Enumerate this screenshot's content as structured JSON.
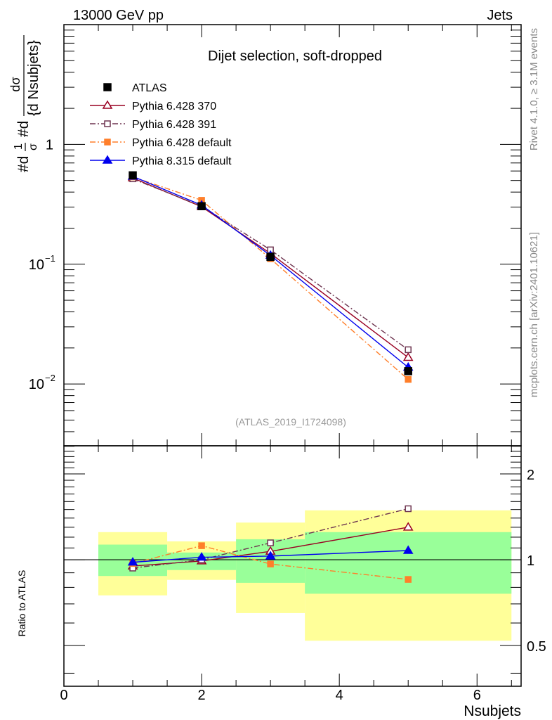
{
  "chart_data": {
    "type": "line",
    "header_left": "13000 GeV pp",
    "header_right": "Jets",
    "title": "Dijet selection, soft-dropped",
    "watermark": "(ATLAS_2019_I1724098)",
    "side_top": "Rivet 4.1.0, ≥ 3.1M events",
    "side_bottom": "mcplots.cern.ch [arXiv:2401.10621]",
    "ylabel": "#d¹⁄σ #d dσ / {d Nsubjets}",
    "ylabel_parts": {
      "a": "#d",
      "frac1_num": "1",
      "frac1_den": "σ",
      "b": "#d",
      "frac2_num": "dσ",
      "frac2_den": "{d Nsubjets}"
    },
    "xlabel": "Nsubjets",
    "ratio_ylabel": "Ratio to ATLAS",
    "xlim": [
      0,
      6.64
    ],
    "ylim": [
      0.00305,
      10
    ],
    "ratio_ylim": [
      0.36,
      2.51
    ],
    "yscale": "log",
    "x_ticks": [
      "0",
      "2",
      "4",
      "6"
    ],
    "y_ticks": [
      {
        "v": 1,
        "label": "1"
      },
      {
        "v": 0.1,
        "label": "10",
        "exp": "−1"
      },
      {
        "v": 0.01,
        "label": "10",
        "exp": "−2"
      }
    ],
    "ratio_ticks": [
      {
        "v": 0.5,
        "label": "0.5"
      },
      {
        "v": 1,
        "label": "1"
      },
      {
        "v": 2,
        "label": "2"
      }
    ],
    "x": [
      1,
      2,
      3,
      5
    ],
    "data": {
      "name": "ATLAS",
      "values": [
        0.552,
        0.305,
        0.115,
        0.0128
      ],
      "color": "#000000"
    },
    "series": [
      {
        "name": "Pythia 6.428 370",
        "ratio": [
          0.95,
          0.99,
          1.07,
          1.3
        ],
        "color": "#990022",
        "dash": "",
        "marker": "triangle-open"
      },
      {
        "name": "Pythia 6.428 391",
        "ratio": [
          0.935,
          1.0,
          1.146,
          1.51
        ],
        "color": "#6e3550",
        "dash": "8,3,2,3",
        "marker": "square-open"
      },
      {
        "name": "Pythia 6.428 default",
        "ratio": [
          0.97,
          1.12,
          0.966,
          0.853
        ],
        "color": "#ff7f2a",
        "dash": "8,3,2,3",
        "marker": "square-filled"
      },
      {
        "name": "Pythia 8.315 default",
        "ratio": [
          0.98,
          1.02,
          1.03,
          1.077
        ],
        "color": "#0000ee",
        "dash": "",
        "marker": "triangle-filled"
      }
    ],
    "bands": {
      "bins": [
        [
          0.5,
          1.5
        ],
        [
          1.5,
          2.5
        ],
        [
          2.5,
          3.5
        ],
        [
          3.5,
          6.5
        ]
      ],
      "inner": [
        [
          0.877,
          1.13
        ],
        [
          0.92,
          1.06
        ],
        [
          0.83,
          1.18
        ],
        [
          0.76,
          1.25
        ]
      ],
      "outer": [
        [
          0.75,
          1.25
        ],
        [
          0.85,
          1.16
        ],
        [
          0.65,
          1.35
        ],
        [
          0.52,
          1.49
        ]
      ],
      "inner_color": "#99ff99",
      "outer_color": "#ffff99"
    }
  }
}
